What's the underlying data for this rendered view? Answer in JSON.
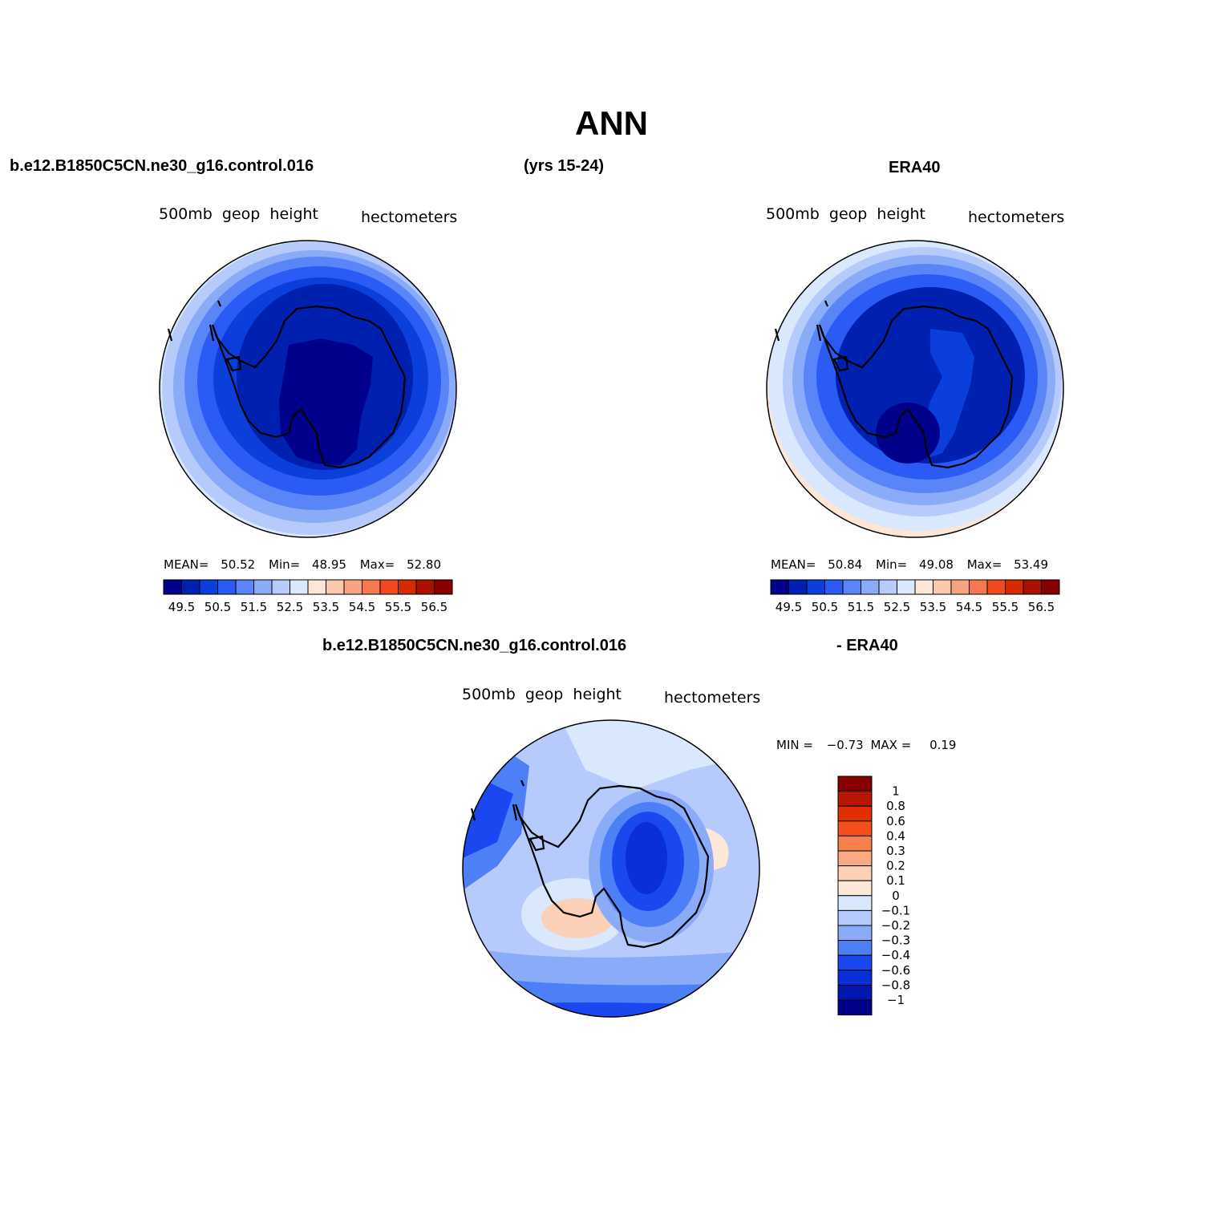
{
  "title": "ANN",
  "header": {
    "case_name": "b.e12.B1850C5CN.ne30_g16.control.016",
    "years": "(yrs 15-24)",
    "obs_name": "ERA40"
  },
  "diff_header": {
    "case_name": "b.e12.B1850C5CN.ne30_g16.control.016",
    "obs_name": "- ERA40"
  },
  "panels": {
    "model": {
      "variable": "500mb  geop  height",
      "units": "hectometers",
      "stats": {
        "mean_label": "MEAN=",
        "mean": "50.52",
        "min_label": "Min=",
        "min": "48.95",
        "max_label": "Max=",
        "max": "52.80"
      }
    },
    "obs": {
      "variable": "500mb  geop  height",
      "units": "hectometers",
      "stats": {
        "mean_label": "MEAN=",
        "mean": "50.84",
        "min_label": "Min=",
        "min": "49.08",
        "max_label": "Max=",
        "max": "53.49"
      }
    },
    "diff": {
      "variable": "500mb  geop  height",
      "units": "hectometers",
      "stats": {
        "min_label": "MIN =",
        "min": "−0.73",
        "max_label": "MAX =",
        "max": "0.19"
      }
    }
  },
  "colorbar_main": {
    "colors": [
      "#00008b",
      "#0020b0",
      "#0a3fdc",
      "#2a5cf5",
      "#5a85f8",
      "#8aabf8",
      "#b6cbfb",
      "#d9e8fd",
      "#fde6d6",
      "#fbc7ad",
      "#f9a27e",
      "#f6784f",
      "#f14a20",
      "#d42a00",
      "#a81100",
      "#870000"
    ],
    "tick_labels": [
      "49.5",
      "50.5",
      "51.5",
      "52.5",
      "53.5",
      "54.5",
      "55.5",
      "56.5"
    ]
  },
  "colorbar_diff": {
    "colors_top_to_bottom": [
      "#870000",
      "#b81800",
      "#e03000",
      "#f4501c",
      "#f5804a",
      "#f9aa84",
      "#fcd0b6",
      "#fde8d8",
      "#d9e8fd",
      "#b6cbfb",
      "#8aabf8",
      "#4d7ff6",
      "#1a48f0",
      "#0a2fd8",
      "#0018b0",
      "#00008b"
    ],
    "labels": [
      "1",
      "0.8",
      "0.6",
      "0.4",
      "0.3",
      "0.2",
      "0.1",
      "0",
      "−0.1",
      "−0.2",
      "−0.3",
      "−0.4",
      "−0.6",
      "−0.8",
      "−1"
    ]
  }
}
